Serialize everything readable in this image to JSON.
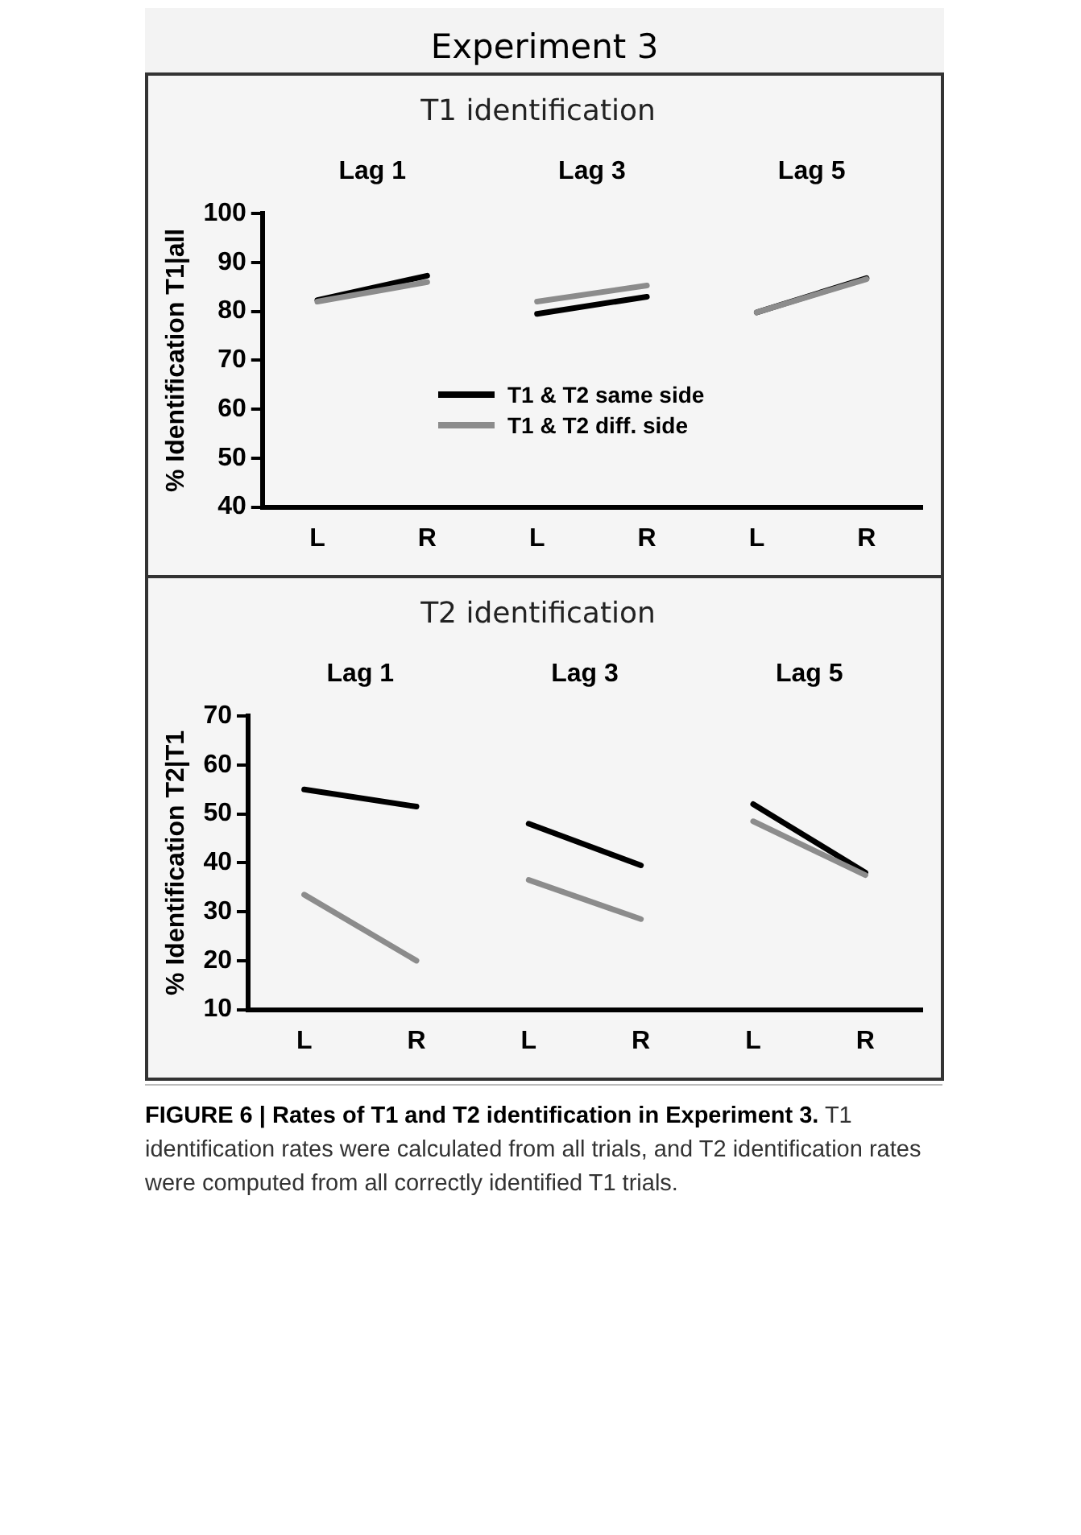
{
  "chart_data": [
    {
      "type": "line",
      "title": "T1 identification",
      "ylabel": "% Identification T1|all",
      "categories": [
        "L",
        "R",
        "L",
        "R",
        "L",
        "R"
      ],
      "series": [
        {
          "name": "T1 & T2 same side",
          "color": "#000000",
          "values": [
            82.3,
            87.3,
            null,
            null,
            null,
            null
          ]
        },
        {
          "name": "T1 & T2 diff. side",
          "color": "#8c8c8c",
          "values": [
            82,
            86,
            null,
            null,
            null,
            null
          ]
        },
        {
          "color": "#000000",
          "values": [
            null,
            null,
            79.5,
            83,
            null,
            null
          ]
        },
        {
          "color": "#8c8c8c",
          "values": [
            null,
            null,
            82,
            85.3,
            null,
            null
          ]
        },
        {
          "color": "#000000",
          "values": [
            null,
            null,
            null,
            null,
            79.8,
            86.8
          ]
        },
        {
          "color": "#8c8c8c",
          "values": [
            null,
            null,
            null,
            null,
            79.8,
            86.6
          ]
        }
      ],
      "ylim": [
        40,
        100
      ],
      "yticks": [
        40,
        50,
        60,
        70,
        80,
        90,
        100
      ],
      "grid": false,
      "legend": "bottom",
      "marker": "none",
      "line_style": "solid",
      "annotations": [
        "Experiment 3",
        "Lag 1",
        "Lag 3",
        "Lag 5"
      ]
    },
    {
      "type": "line",
      "title": "T2 identification",
      "ylabel": "% Identification T2|T1",
      "categories": [
        "L",
        "R",
        "L",
        "R",
        "L",
        "R"
      ],
      "series": [
        {
          "color": "#000000",
          "values": [
            55,
            51.5,
            null,
            null,
            null,
            null
          ]
        },
        {
          "color": "#8c8c8c",
          "values": [
            33.5,
            20,
            null,
            null,
            null,
            null
          ]
        },
        {
          "color": "#000000",
          "values": [
            null,
            null,
            48,
            39.5,
            null,
            null
          ]
        },
        {
          "color": "#8c8c8c",
          "values": [
            null,
            null,
            36.5,
            28.5,
            null,
            null
          ]
        },
        {
          "color": "#000000",
          "values": [
            null,
            null,
            null,
            null,
            52,
            38
          ]
        },
        {
          "color": "#8c8c8c",
          "values": [
            null,
            null,
            null,
            null,
            48.5,
            37.5
          ]
        }
      ],
      "ylim": [
        10,
        70
      ],
      "yticks": [
        10,
        20,
        30,
        40,
        50,
        60,
        70
      ],
      "grid": false,
      "legend": false,
      "marker": "none",
      "line_style": "solid",
      "annotations": [
        "Lag 1",
        "Lag 3",
        "Lag 5",
        "FIGURE 6 | Rates of T1 and T2 identification in Experiment 3.",
        "T1 identification rates were calculated from all trials, and T2 identification rates were computed from all correctly identified T1 trials."
      ]
    }
  ]
}
